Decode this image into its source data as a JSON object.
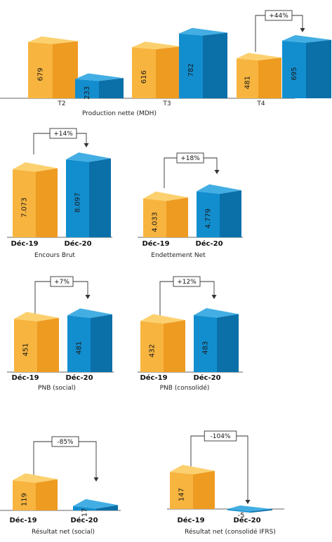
{
  "colors": {
    "dec19_front": "#F7B43F",
    "dec19_side": "#EE9B22",
    "dec19_top": "#FCD06E",
    "dec20_front": "#128ECF",
    "dec20_side": "#0B6FA8",
    "dec20_top": "#43AEE3"
  },
  "chart_data": [
    {
      "type": "bar",
      "title": "Production nette (MDH)",
      "categories": [
        "",
        "T2",
        "T3",
        "T4"
      ],
      "series": [
        {
          "values": [
            null,
            679,
            616,
            481
          ]
        },
        {
          "values": [
            null,
            233,
            782,
            695
          ]
        }
      ],
      "annotations": [
        {
          "text": "+44%",
          "category": "T4"
        }
      ]
    },
    {
      "type": "bar",
      "title": "Encours Brut",
      "categories": [
        "Déc-19",
        "Déc-20"
      ],
      "values": [
        7.073,
        8.097
      ],
      "value_labels": [
        "7.073",
        "8.097"
      ],
      "annotations": [
        {
          "text": "+14%"
        }
      ]
    },
    {
      "type": "bar",
      "title": "Endettement Net",
      "categories": [
        "Déc-19",
        "Déc-20"
      ],
      "values": [
        4.033,
        4.779
      ],
      "value_labels": [
        "4.033",
        "4.779"
      ],
      "annotations": [
        {
          "text": "+18%"
        }
      ]
    },
    {
      "type": "bar",
      "title": "PNB (social)",
      "categories": [
        "Déc-19",
        "Déc-20"
      ],
      "values": [
        451,
        481
      ],
      "value_labels": [
        "451",
        "481"
      ],
      "annotations": [
        {
          "text": "+7%"
        }
      ]
    },
    {
      "type": "bar",
      "title": "PNB (consolidé)",
      "categories": [
        "Déc-19",
        "Déc-20"
      ],
      "values": [
        432,
        483
      ],
      "value_labels": [
        "432",
        "483"
      ],
      "annotations": [
        {
          "text": "+12%"
        }
      ]
    },
    {
      "type": "bar",
      "title": "Résultat net (social)",
      "categories": [
        "Déc-19",
        "Déc-20"
      ],
      "values": [
        119,
        17
      ],
      "value_labels": [
        "119",
        "17"
      ],
      "annotations": [
        {
          "text": "-85%"
        }
      ]
    },
    {
      "type": "bar",
      "title": "Résultat net (consolidé IFRS)",
      "categories": [
        "Déc-19",
        "Déc-20"
      ],
      "values": [
        147,
        -5
      ],
      "value_labels": [
        "147",
        "-5"
      ],
      "annotations": [
        {
          "text": "-104%"
        }
      ]
    }
  ]
}
